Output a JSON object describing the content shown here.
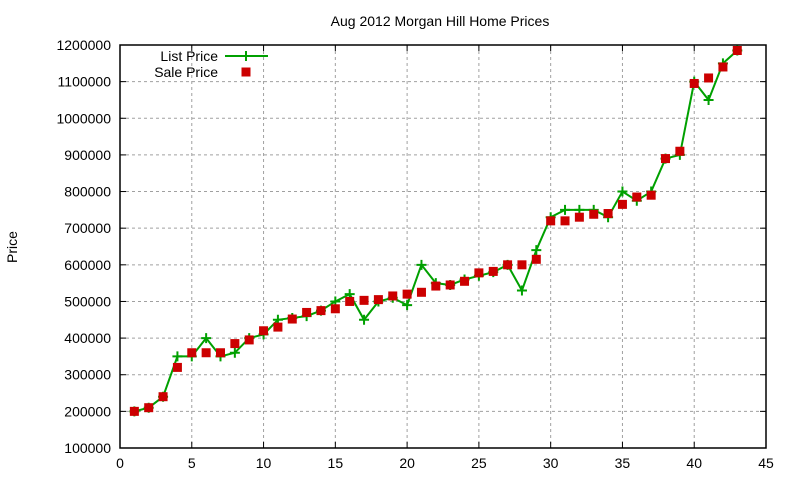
{
  "chart_data": {
    "type": "line",
    "title": "Aug 2012 Morgan Hill Home Prices",
    "xlabel": "",
    "ylabel": "Price",
    "xlim": [
      0,
      45
    ],
    "ylim": [
      100000,
      1200000
    ],
    "xticks": [
      0,
      5,
      10,
      15,
      20,
      25,
      30,
      35,
      40,
      45
    ],
    "yticks": [
      100000,
      200000,
      300000,
      400000,
      500000,
      600000,
      700000,
      800000,
      900000,
      1000000,
      1100000,
      1200000
    ],
    "grid": true,
    "legend_position": "top-left",
    "x": [
      1,
      2,
      3,
      4,
      5,
      6,
      7,
      8,
      9,
      10,
      11,
      12,
      13,
      14,
      15,
      16,
      17,
      18,
      19,
      20,
      21,
      22,
      23,
      24,
      25,
      26,
      27,
      28,
      29,
      30,
      31,
      32,
      33,
      34,
      35,
      36,
      37,
      38,
      39,
      40,
      41,
      42,
      43
    ],
    "series": [
      {
        "name": "List Price",
        "style": "linespoints",
        "color": "#00a000",
        "values": [
          200000,
          210000,
          240000,
          350000,
          350000,
          400000,
          350000,
          360000,
          400000,
          410000,
          450000,
          455000,
          460000,
          475000,
          500000,
          520000,
          450000,
          500000,
          510000,
          490000,
          600000,
          550000,
          545000,
          560000,
          570000,
          580000,
          600000,
          530000,
          640000,
          730000,
          750000,
          750000,
          750000,
          730000,
          800000,
          775000,
          800000,
          890000,
          900000,
          1100000,
          1050000,
          1150000,
          1185000
        ]
      },
      {
        "name": "Sale Price",
        "style": "points",
        "color": "#cc0000",
        "values": [
          200000,
          210000,
          240000,
          320000,
          360000,
          360000,
          360000,
          385000,
          395000,
          420000,
          430000,
          452000,
          470000,
          475000,
          480000,
          500000,
          503000,
          505000,
          515000,
          520000,
          525000,
          542000,
          545000,
          555000,
          578000,
          582000,
          600000,
          600000,
          615000,
          720000,
          720000,
          730000,
          738000,
          740000,
          765000,
          785000,
          790000,
          890000,
          910000,
          1095000,
          1110000,
          1140000,
          1185000
        ]
      }
    ]
  }
}
